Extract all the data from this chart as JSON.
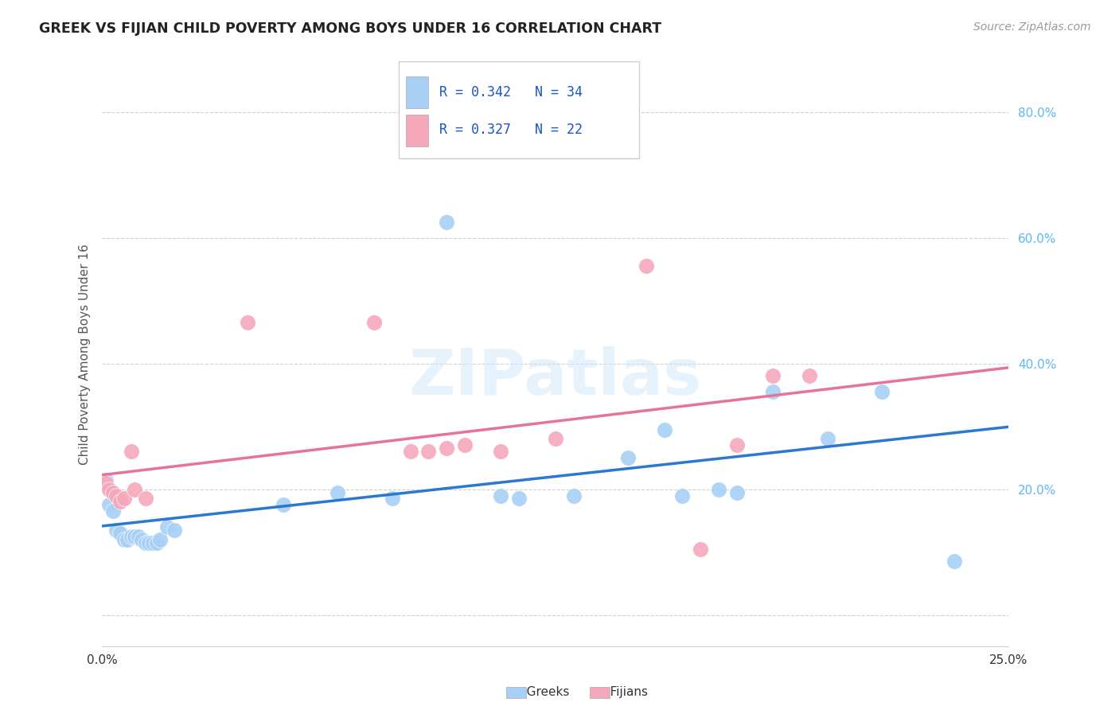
{
  "title": "GREEK VS FIJIAN CHILD POVERTY AMONG BOYS UNDER 16 CORRELATION CHART",
  "source": "Source: ZipAtlas.com",
  "ylabel": "Child Poverty Among Boys Under 16",
  "xlim": [
    0.0,
    0.25
  ],
  "ylim": [
    -0.05,
    0.88
  ],
  "greek_R": 0.342,
  "greek_N": 34,
  "fijian_R": 0.327,
  "fijian_N": 22,
  "greek_color": "#a8d0f5",
  "fijian_color": "#f5a8bc",
  "greek_line_color": "#2979d0",
  "fijian_line_color": "#e8739a",
  "watermark_color": "#d0e8fa",
  "background_color": "#ffffff",
  "legend_color": "#1a56c4",
  "grid_color": "#d0d0d0",
  "greeks_x": [
    0.001,
    0.002,
    0.003,
    0.004,
    0.005,
    0.006,
    0.007,
    0.008,
    0.009,
    0.01,
    0.011,
    0.012,
    0.013,
    0.014,
    0.015,
    0.016,
    0.018,
    0.02,
    0.05,
    0.065,
    0.08,
    0.095,
    0.11,
    0.115,
    0.13,
    0.145,
    0.155,
    0.16,
    0.17,
    0.175,
    0.185,
    0.2,
    0.215,
    0.235
  ],
  "greeks_y": [
    0.215,
    0.175,
    0.165,
    0.135,
    0.13,
    0.12,
    0.12,
    0.125,
    0.125,
    0.125,
    0.12,
    0.115,
    0.115,
    0.115,
    0.115,
    0.12,
    0.14,
    0.135,
    0.175,
    0.195,
    0.185,
    0.625,
    0.19,
    0.185,
    0.19,
    0.25,
    0.295,
    0.19,
    0.2,
    0.195,
    0.355,
    0.28,
    0.355,
    0.085
  ],
  "fijians_x": [
    0.001,
    0.002,
    0.003,
    0.004,
    0.005,
    0.006,
    0.008,
    0.009,
    0.012,
    0.04,
    0.075,
    0.085,
    0.09,
    0.095,
    0.1,
    0.11,
    0.125,
    0.15,
    0.165,
    0.175,
    0.185,
    0.195
  ],
  "fijians_y": [
    0.21,
    0.2,
    0.195,
    0.19,
    0.18,
    0.185,
    0.26,
    0.2,
    0.185,
    0.465,
    0.465,
    0.26,
    0.26,
    0.265,
    0.27,
    0.26,
    0.28,
    0.555,
    0.105,
    0.27,
    0.38,
    0.38
  ]
}
